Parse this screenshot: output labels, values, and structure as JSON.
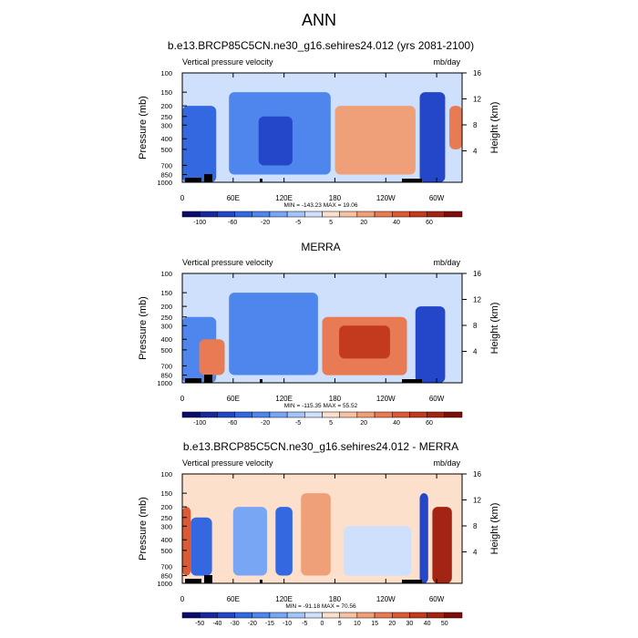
{
  "figure_title": "ANN",
  "chart_data": [
    {
      "type": "heatmap",
      "title": "b.e13.BRCP85C5CN.ne30_g16.sehires24.012 (yrs 2081-2100)",
      "variable": "Vertical pressure velocity",
      "units": "mb/day",
      "ylabel": "Pressure (mb)",
      "y2label": "Height (km)",
      "x_ticks": [
        "0",
        "60E",
        "120E",
        "180",
        "120W",
        "60W"
      ],
      "x_tick_lon": [
        0,
        60,
        120,
        180,
        240,
        300
      ],
      "x_range": [
        0,
        330
      ],
      "y_ticks": [
        "100",
        "150",
        "200",
        "250",
        "300",
        "400",
        "500",
        "700",
        "850",
        "1000"
      ],
      "y_tick_p": [
        100,
        150,
        200,
        250,
        300,
        400,
        500,
        700,
        850,
        1000
      ],
      "y_range": [
        100,
        1000
      ],
      "y2_ticks": [
        "16",
        "12",
        "8",
        "4"
      ],
      "y2_tick_km": [
        16,
        12,
        8,
        4
      ],
      "stats": "MIN = -143.23  MAX = 19.06",
      "colorbar_labels": [
        "-100",
        "-60",
        "-20",
        "-5",
        "5",
        "20",
        "40",
        "60"
      ],
      "colorbar_levels": [
        -120,
        -100,
        -80,
        -60,
        -40,
        -20,
        -10,
        -5,
        0,
        5,
        10,
        20,
        30,
        40,
        50,
        60
      ],
      "colorbar_colors": [
        "#0a0d6b",
        "#18289f",
        "#2447c9",
        "#3468e0",
        "#4f86ee",
        "#78a6f4",
        "#a3c4f8",
        "#cfe0fc",
        "#fde0cc",
        "#f8c1a1",
        "#f0a079",
        "#e87b54",
        "#db5a35",
        "#c43a1e",
        "#a32412",
        "#7d0e0a"
      ],
      "field": [
        {
          "lon": [
            0,
            40
          ],
          "p": [
            200,
            1000
          ],
          "value": -60
        },
        {
          "lon": [
            55,
            175
          ],
          "p": [
            150,
            850
          ],
          "value": -40
        },
        {
          "lon": [
            90,
            130
          ],
          "p": [
            250,
            700
          ],
          "value": -80
        },
        {
          "lon": [
            180,
            275
          ],
          "p": [
            200,
            850
          ],
          "value": 10
        },
        {
          "lon": [
            280,
            310
          ],
          "p": [
            150,
            1000
          ],
          "value": -80
        },
        {
          "lon": [
            315,
            330
          ],
          "p": [
            200,
            500
          ],
          "value": 20
        }
      ]
    },
    {
      "type": "heatmap",
      "title": "MERRA",
      "variable": "Vertical pressure velocity",
      "units": "mb/day",
      "ylabel": "Pressure (mb)",
      "y2label": "Height (km)",
      "x_ticks": [
        "0",
        "60E",
        "120E",
        "180",
        "120W",
        "60W"
      ],
      "x_tick_lon": [
        0,
        60,
        120,
        180,
        240,
        300
      ],
      "x_range": [
        0,
        330
      ],
      "y_ticks": [
        "100",
        "150",
        "200",
        "250",
        "300",
        "400",
        "500",
        "700",
        "850",
        "1000"
      ],
      "y_tick_p": [
        100,
        150,
        200,
        250,
        300,
        400,
        500,
        700,
        850,
        1000
      ],
      "y_range": [
        100,
        1000
      ],
      "y2_ticks": [
        "16",
        "12",
        "8",
        "4"
      ],
      "y2_tick_km": [
        16,
        12,
        8,
        4
      ],
      "stats": "MIN = -115.35  MAX = 55.52",
      "colorbar_labels": [
        "-100",
        "-60",
        "-20",
        "-5",
        "5",
        "20",
        "40",
        "60"
      ],
      "colorbar_levels": [
        -120,
        -100,
        -80,
        -60,
        -40,
        -20,
        -10,
        -5,
        0,
        5,
        10,
        20,
        30,
        40,
        50,
        60
      ],
      "colorbar_colors": [
        "#0a0d6b",
        "#18289f",
        "#2447c9",
        "#3468e0",
        "#4f86ee",
        "#78a6f4",
        "#a3c4f8",
        "#cfe0fc",
        "#fde0cc",
        "#f8c1a1",
        "#f0a079",
        "#e87b54",
        "#db5a35",
        "#c43a1e",
        "#a32412",
        "#7d0e0a"
      ],
      "field": [
        {
          "lon": [
            0,
            40
          ],
          "p": [
            250,
            1000
          ],
          "value": -40
        },
        {
          "lon": [
            20,
            50
          ],
          "p": [
            400,
            850
          ],
          "value": 20
        },
        {
          "lon": [
            55,
            160
          ],
          "p": [
            150,
            850
          ],
          "value": -40
        },
        {
          "lon": [
            165,
            265
          ],
          "p": [
            250,
            850
          ],
          "value": 20
        },
        {
          "lon": [
            185,
            245
          ],
          "p": [
            300,
            600
          ],
          "value": 40
        },
        {
          "lon": [
            275,
            310
          ],
          "p": [
            200,
            1000
          ],
          "value": -80
        }
      ]
    },
    {
      "type": "heatmap",
      "title": "b.e13.BRCP85C5CN.ne30_g16.sehires24.012 - MERRA",
      "variable": "Vertical pressure velocity",
      "units": "mb/day",
      "ylabel": "Pressure (mb)",
      "y2label": "Height (km)",
      "x_ticks": [
        "0",
        "60E",
        "120E",
        "180",
        "120W",
        "60W"
      ],
      "x_tick_lon": [
        0,
        60,
        120,
        180,
        240,
        300
      ],
      "x_range": [
        0,
        330
      ],
      "y_ticks": [
        "100",
        "150",
        "200",
        "250",
        "300",
        "400",
        "500",
        "700",
        "850",
        "1000"
      ],
      "y_tick_p": [
        100,
        150,
        200,
        250,
        300,
        400,
        500,
        700,
        850,
        1000
      ],
      "y_range": [
        100,
        1000
      ],
      "y2_ticks": [
        "16",
        "12",
        "8",
        "4"
      ],
      "y2_tick_km": [
        16,
        12,
        8,
        4
      ],
      "stats": "MIN = -91.18  MAX = 70.56",
      "colorbar_labels": [
        "-50",
        "-40",
        "-30",
        "-20",
        "-15",
        "-10",
        "-5",
        "0",
        "5",
        "10",
        "15",
        "20",
        "30",
        "40",
        "50"
      ],
      "colorbar_levels": [
        -60,
        -50,
        -40,
        -30,
        -20,
        -15,
        -10,
        -5,
        0,
        5,
        10,
        15,
        20,
        30,
        40,
        50
      ],
      "colorbar_colors": [
        "#0a0d6b",
        "#18289f",
        "#2447c9",
        "#3468e0",
        "#4f86ee",
        "#78a6f4",
        "#a3c4f8",
        "#cfe0fc",
        "#fde0cc",
        "#f8c1a1",
        "#f0a079",
        "#e87b54",
        "#db5a35",
        "#c43a1e",
        "#a32412",
        "#7d0e0a"
      ],
      "field": [
        {
          "lon": [
            0,
            10
          ],
          "p": [
            200,
            850
          ],
          "value": 20
        },
        {
          "lon": [
            10,
            35
          ],
          "p": [
            250,
            850
          ],
          "value": -30
        },
        {
          "lon": [
            60,
            100
          ],
          "p": [
            200,
            850
          ],
          "value": -15
        },
        {
          "lon": [
            110,
            130
          ],
          "p": [
            200,
            850
          ],
          "value": -30
        },
        {
          "lon": [
            140,
            175
          ],
          "p": [
            150,
            850
          ],
          "value": 10
        },
        {
          "lon": [
            190,
            270
          ],
          "p": [
            300,
            850
          ],
          "value": -5
        },
        {
          "lon": [
            280,
            290
          ],
          "p": [
            150,
            1000
          ],
          "value": -40
        },
        {
          "lon": [
            295,
            318
          ],
          "p": [
            200,
            1000
          ],
          "value": 40
        }
      ]
    }
  ]
}
